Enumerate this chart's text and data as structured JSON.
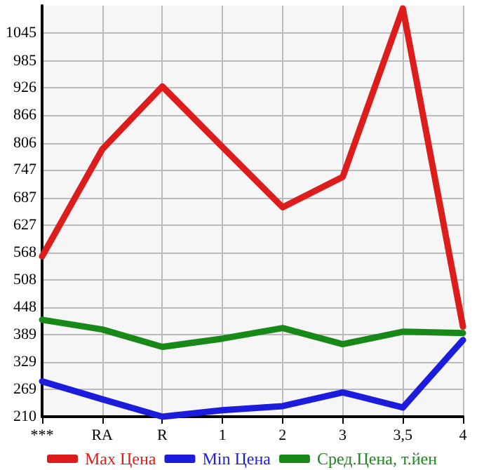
{
  "chart_data": {
    "type": "line",
    "categories": [
      "***",
      "RA",
      "R",
      "1",
      "2",
      "3",
      "3,5",
      "4"
    ],
    "series": [
      {
        "name": "Max Цена",
        "color": "#dd1c1c",
        "values": [
          559,
          792,
          929,
          797,
          666,
          732,
          1099,
          406
        ]
      },
      {
        "name": "Min Цена",
        "color": "#1c1cdd",
        "values": [
          287,
          248,
          210,
          224,
          233,
          263,
          230,
          377
        ]
      },
      {
        "name": "Сред.Цена, т.йен",
        "color": "#188818",
        "values": [
          421,
          400,
          362,
          380,
          403,
          368,
          395,
          392
        ]
      }
    ],
    "ylim": [
      210,
      1105
    ],
    "yticks": [
      210,
      269,
      329,
      389,
      448,
      508,
      568,
      627,
      687,
      747,
      806,
      866,
      926,
      985,
      1045
    ],
    "grid": true,
    "legend": "bottom",
    "marker": "none",
    "line_style": "solid"
  }
}
